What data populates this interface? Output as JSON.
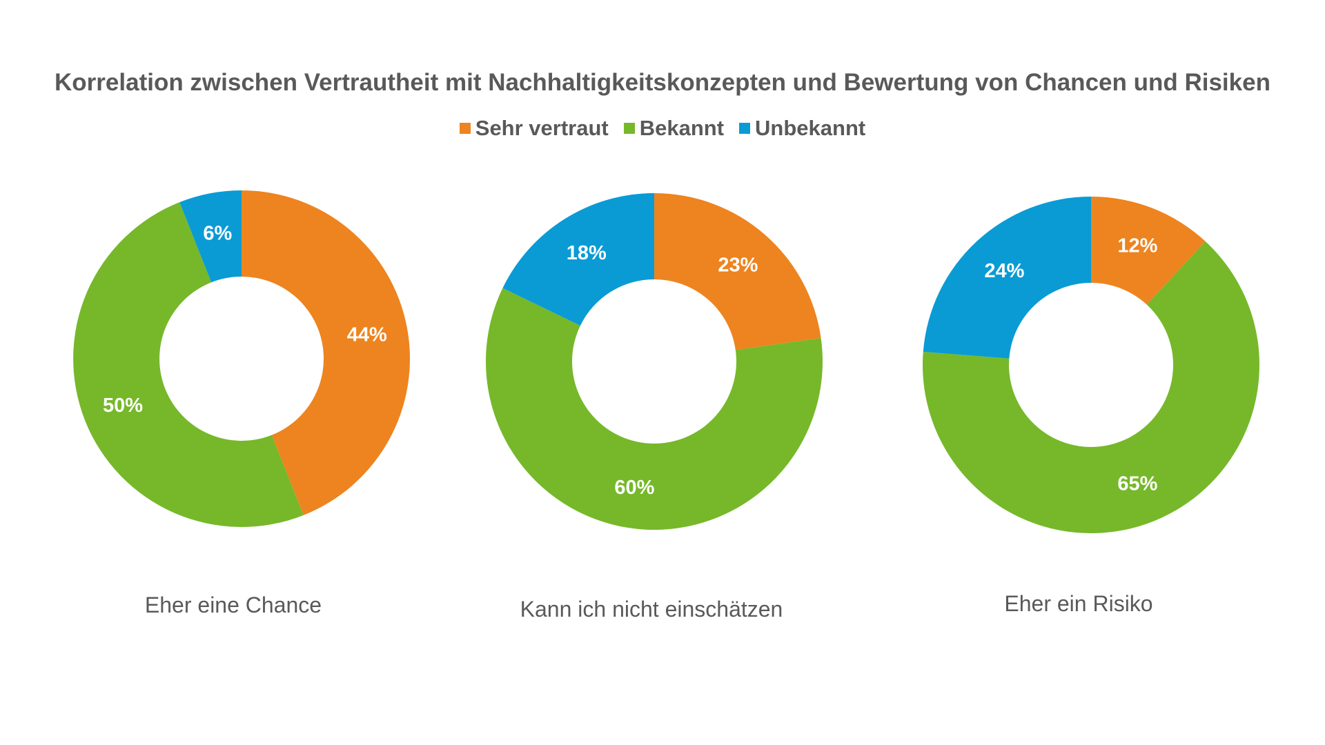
{
  "chart_data": {
    "type": "donut",
    "title": "Korrelation zwischen Vertrautheit mit Nachhaltigkeitskonzepten und Bewertung von Chancen und Risiken",
    "legend_position": "top",
    "series_names": [
      "Sehr vertraut",
      "Bekannt",
      "Unbekannt"
    ],
    "colors": [
      "#ED841F",
      "#76B82A",
      "#0A9BD5"
    ],
    "charts": [
      {
        "caption": "Eher eine Chance",
        "values": [
          44,
          50,
          6
        ],
        "labels": [
          "44%",
          "50%",
          "6%"
        ]
      },
      {
        "caption": "Kann ich nicht einschätzen",
        "values": [
          23,
          60,
          18
        ],
        "labels": [
          "23%",
          "60%",
          "18%"
        ]
      },
      {
        "caption": "Eher ein Risiko",
        "values": [
          12,
          65,
          24
        ],
        "labels": [
          "12%",
          "65%",
          "24%"
        ]
      }
    ]
  }
}
